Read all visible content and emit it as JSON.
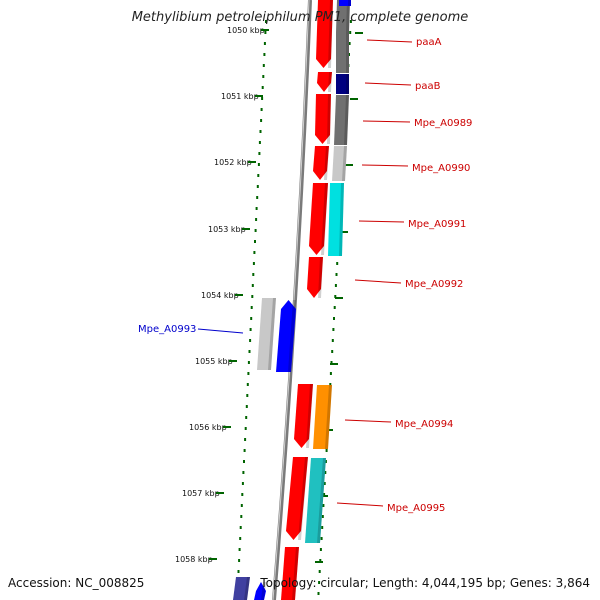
{
  "title": "Methylibium petroleiphilum PM1, complete genome",
  "footer": {
    "accession": "Accession: NC_008825",
    "topology": "Topology: circular; Length: 4,044,195 bp; Genes: 3,864"
  },
  "ticks": [
    "1050 kbp",
    "1051 kbp",
    "1052 kbp",
    "1053 kbp",
    "1054 kbp",
    "1055 kbp",
    "1056 kbp",
    "1057 kbp",
    "1058 kbp"
  ],
  "colors": {
    "red": "#ff0000",
    "blue": "#0000ff",
    "navy": "#000080",
    "dark_gray": "#707070",
    "light_gray": "#c8c8c8",
    "cyan": "#00e0e0",
    "teal": "#20c0c0",
    "orange": "#ff9000",
    "purple": "#4040a0",
    "tick_green": "#006400",
    "label_red": "#cc0000",
    "label_blue": "#0000cc"
  },
  "gene_labels": [
    {
      "name": "paaA",
      "color": "red"
    },
    {
      "name": "paaB",
      "color": "red"
    },
    {
      "name": "Mpe_A0989",
      "color": "red"
    },
    {
      "name": "Mpe_A0990",
      "color": "red"
    },
    {
      "name": "Mpe_A0991",
      "color": "red"
    },
    {
      "name": "Mpe_A0992",
      "color": "red"
    },
    {
      "name": "Mpe_A0993",
      "color": "blue"
    },
    {
      "name": "Mpe_A0994",
      "color": "red"
    },
    {
      "name": "Mpe_A0995",
      "color": "red"
    }
  ]
}
